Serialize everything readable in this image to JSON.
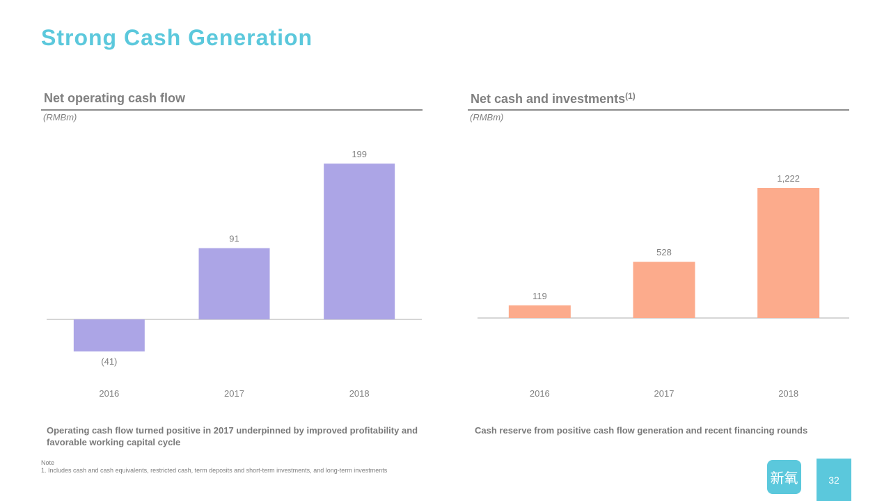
{
  "slide": {
    "title": "Strong Cash Generation",
    "page_number": "32",
    "logo_text": "新氧"
  },
  "left_panel": {
    "title": "Net operating cash flow",
    "unit": "(RMBm)",
    "caption": "Operating cash flow turned positive in 2017 underpinned by improved profitability and favorable working capital cycle"
  },
  "right_panel": {
    "title": "Net cash and investments",
    "title_footnote_mark": "(1)",
    "unit": "(RMBm)",
    "caption": "Cash reserve from positive cash flow generation and recent financing rounds"
  },
  "note": {
    "heading": "Note",
    "text": "1. Includes cash and cash equivalents, restricted cash, term deposits and short-term investments, and long-term investments"
  },
  "colors": {
    "accent": "#5bc8dc",
    "left_bars": "#aca5e6",
    "right_bars": "#fcab8c",
    "text_gray": "#7f7f7f"
  },
  "chart_data": [
    {
      "type": "bar",
      "title": "Net operating cash flow",
      "ylabel": "(RMBm)",
      "categories": [
        "2016",
        "2017",
        "2018"
      ],
      "values": [
        -41,
        91,
        199
      ],
      "data_labels": [
        "(41)",
        "91",
        "199"
      ],
      "ylim": [
        -60,
        220
      ],
      "grid": false
    },
    {
      "type": "bar",
      "title": "Net cash and investments",
      "ylabel": "(RMBm)",
      "categories": [
        "2016",
        "2017",
        "2018"
      ],
      "values": [
        119,
        528,
        1222
      ],
      "data_labels": [
        "119",
        "528",
        "1,222"
      ],
      "ylim": [
        0,
        1300
      ],
      "grid": false
    }
  ]
}
